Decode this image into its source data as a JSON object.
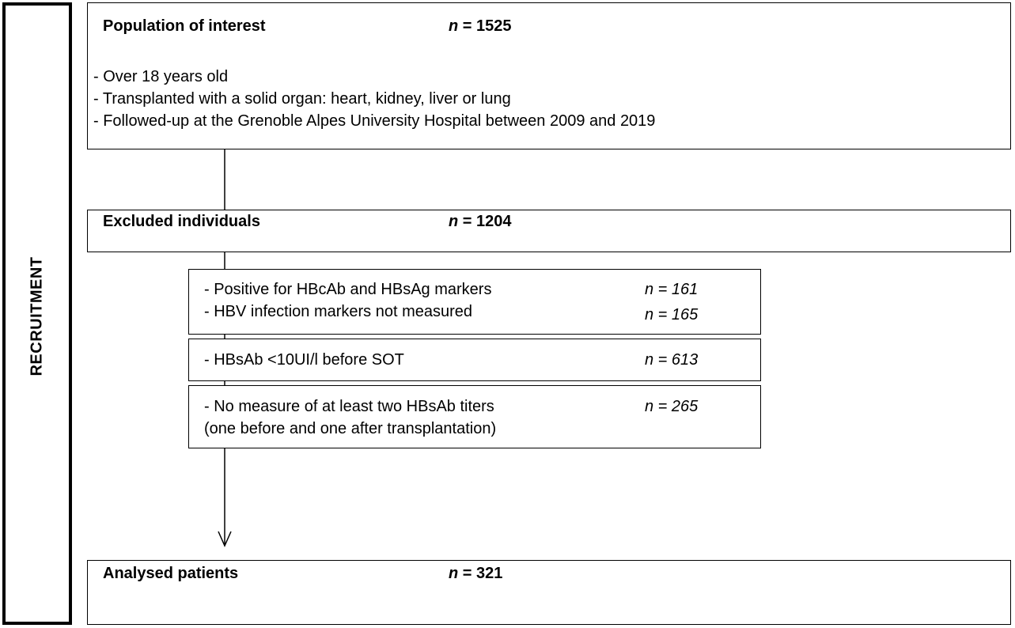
{
  "side_label": "RECRUITMENT",
  "population": {
    "title": "Population of interest",
    "count": "n = 1525",
    "criteria": [
      "- Over 18 years old",
      "- Transplanted with a solid organ: heart, kidney, liver or lung",
      "- Followed-up at the Grenoble Alpes University Hospital between 2009 and 2019"
    ]
  },
  "excluded": {
    "title": "Excluded individuals",
    "count": "n = 1204",
    "reasons": [
      {
        "lines": [
          "- Positive for HBcAb and HBsAg markers",
          "- HBV infection markers not measured"
        ],
        "counts": [
          "n = 161",
          "n = 165"
        ]
      },
      {
        "lines": [
          "- HBsAb <10UI/l before SOT"
        ],
        "counts": [
          "n = 613"
        ]
      },
      {
        "lines": [
          "- No measure of at least two HBsAb titers",
          "(one before and one after transplantation)"
        ],
        "counts": [
          "n = 265"
        ]
      }
    ]
  },
  "analysed": {
    "title": "Analysed patients",
    "count": "n = 321"
  }
}
